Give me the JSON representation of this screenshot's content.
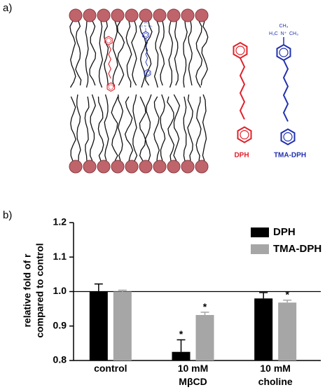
{
  "panel_a": {
    "label": "a)",
    "dph_name": "DPH",
    "tma_name": "TMA-DPH",
    "tma_groups": [
      "CH₃",
      "H₃C",
      "N⁺",
      "CH₃"
    ]
  },
  "chart_data": {
    "type": "bar",
    "panel_label": "b)",
    "ylabel": [
      "relative fold of r",
      "compared to control"
    ],
    "categories": [
      "control",
      "10 mM\nMβCD",
      "10 mM\ncholine"
    ],
    "series": [
      {
        "name": "DPH",
        "color": "#000000",
        "values": [
          1.0,
          0.825,
          0.98
        ],
        "errors": [
          0.022,
          0.035,
          0.017
        ],
        "markers": [
          null,
          "*",
          null
        ]
      },
      {
        "name": "TMA-DPH",
        "color": "#a6a6a6",
        "values": [
          1.0,
          0.932,
          0.968
        ],
        "errors": [
          0.004,
          0.008,
          0.007
        ],
        "markers": [
          null,
          "*",
          "*"
        ]
      }
    ],
    "ylim": [
      0.8,
      1.2
    ],
    "yticks": [
      0.8,
      0.9,
      {
        "value": 1.0,
        "label": "1.0"
      },
      1.1,
      1.2
    ],
    "refline": 1.0,
    "legend": "upper right"
  }
}
